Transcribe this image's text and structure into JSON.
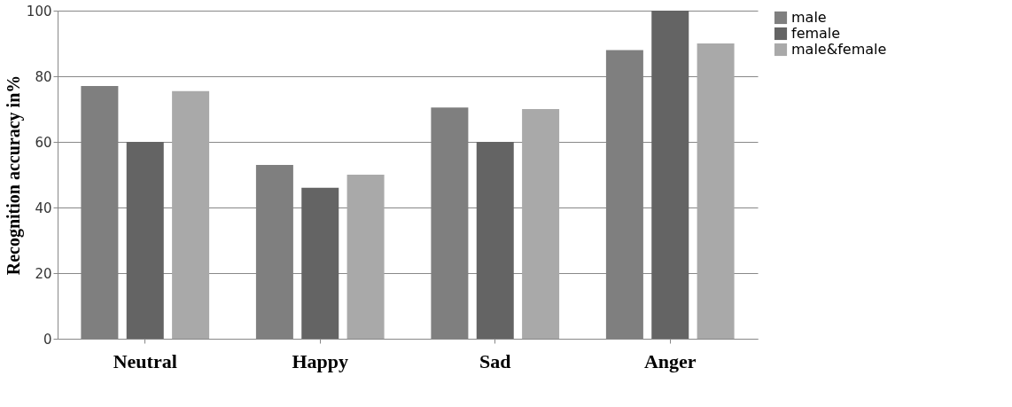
{
  "chart_data": {
    "type": "bar",
    "ylabel": "Recognition accuracy in%",
    "categories": [
      "Neutral",
      "Happy",
      "Sad",
      "Anger"
    ],
    "series": [
      {
        "name": "male",
        "color": "#7f7f7f",
        "values": [
          77,
          53,
          70.5,
          88
        ]
      },
      {
        "name": "female",
        "color": "#646464",
        "values": [
          60,
          46,
          60,
          100
        ]
      },
      {
        "name": "male&female",
        "color": "#a9a9a9",
        "values": [
          75.5,
          50,
          70,
          90
        ]
      }
    ],
    "ylim": [
      0,
      100
    ],
    "yticks": [
      0,
      20,
      40,
      60,
      80,
      100
    ],
    "grid": "y",
    "legend": "right"
  }
}
